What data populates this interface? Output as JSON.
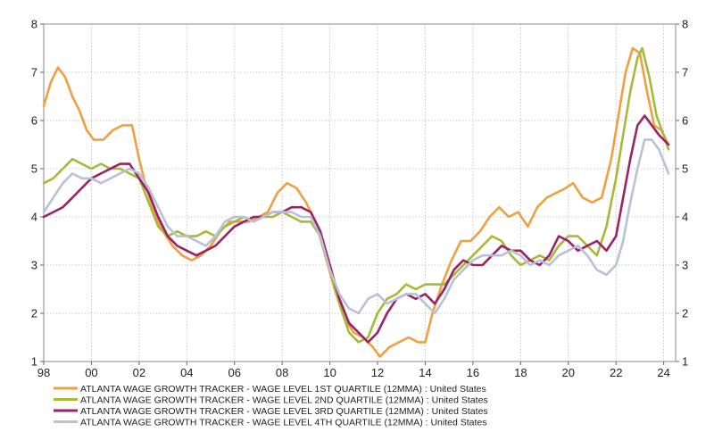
{
  "chart_data": {
    "type": "line",
    "xlim": [
      1998,
      2024.5
    ],
    "ylim": [
      1,
      8
    ],
    "x_ticks": [
      "98",
      "00",
      "02",
      "04",
      "06",
      "08",
      "10",
      "12",
      "14",
      "16",
      "18",
      "20",
      "22",
      "24"
    ],
    "x_tick_values": [
      1998,
      2000,
      2002,
      2004,
      2006,
      2008,
      2010,
      2012,
      2014,
      2016,
      2018,
      2020,
      2022,
      2024
    ],
    "y_ticks": [
      "1",
      "2",
      "3",
      "4",
      "5",
      "6",
      "7",
      "8"
    ],
    "y_tick_values": [
      1,
      2,
      3,
      4,
      5,
      6,
      7,
      8
    ],
    "grid": true,
    "legend_position": "bottom",
    "series": [
      {
        "name": "ATLANTA WAGE GROWTH TRACKER - WAGE LEVEL 1ST QUARTILE (12MMA) : United States",
        "color": "#f0a040",
        "points": [
          [
            1998.0,
            6.3
          ],
          [
            1998.3,
            6.8
          ],
          [
            1998.6,
            7.1
          ],
          [
            1998.9,
            6.9
          ],
          [
            1999.2,
            6.5
          ],
          [
            1999.5,
            6.2
          ],
          [
            1999.8,
            5.8
          ],
          [
            2000.1,
            5.6
          ],
          [
            2000.5,
            5.6
          ],
          [
            2000.9,
            5.8
          ],
          [
            2001.3,
            5.9
          ],
          [
            2001.7,
            5.9
          ],
          [
            2002.0,
            5.2
          ],
          [
            2002.3,
            4.6
          ],
          [
            2002.7,
            4.0
          ],
          [
            2003.0,
            3.7
          ],
          [
            2003.4,
            3.4
          ],
          [
            2003.8,
            3.2
          ],
          [
            2004.2,
            3.1
          ],
          [
            2004.6,
            3.2
          ],
          [
            2005.0,
            3.4
          ],
          [
            2005.4,
            3.7
          ],
          [
            2005.8,
            3.9
          ],
          [
            2006.2,
            3.9
          ],
          [
            2006.6,
            3.9
          ],
          [
            2007.0,
            4.0
          ],
          [
            2007.4,
            4.1
          ],
          [
            2007.8,
            4.5
          ],
          [
            2008.2,
            4.7
          ],
          [
            2008.6,
            4.6
          ],
          [
            2009.0,
            4.3
          ],
          [
            2009.4,
            3.9
          ],
          [
            2009.8,
            3.2
          ],
          [
            2010.2,
            2.5
          ],
          [
            2010.6,
            1.9
          ],
          [
            2011.0,
            1.6
          ],
          [
            2011.4,
            1.5
          ],
          [
            2011.8,
            1.3
          ],
          [
            2012.1,
            1.1
          ],
          [
            2012.5,
            1.3
          ],
          [
            2012.9,
            1.4
          ],
          [
            2013.3,
            1.5
          ],
          [
            2013.7,
            1.4
          ],
          [
            2014.0,
            1.4
          ],
          [
            2014.3,
            2.0
          ],
          [
            2014.7,
            2.6
          ],
          [
            2015.1,
            3.1
          ],
          [
            2015.5,
            3.5
          ],
          [
            2015.9,
            3.5
          ],
          [
            2016.3,
            3.7
          ],
          [
            2016.7,
            4.0
          ],
          [
            2017.1,
            4.2
          ],
          [
            2017.5,
            4.0
          ],
          [
            2017.9,
            4.1
          ],
          [
            2018.3,
            3.8
          ],
          [
            2018.7,
            4.2
          ],
          [
            2019.1,
            4.4
          ],
          [
            2019.5,
            4.5
          ],
          [
            2019.9,
            4.6
          ],
          [
            2020.2,
            4.7
          ],
          [
            2020.6,
            4.4
          ],
          [
            2021.0,
            4.3
          ],
          [
            2021.4,
            4.4
          ],
          [
            2021.8,
            5.2
          ],
          [
            2022.1,
            6.1
          ],
          [
            2022.4,
            7.0
          ],
          [
            2022.7,
            7.5
          ],
          [
            2023.0,
            7.4
          ],
          [
            2023.3,
            6.6
          ],
          [
            2023.6,
            5.9
          ],
          [
            2023.9,
            5.8
          ],
          [
            2024.2,
            5.5
          ]
        ]
      },
      {
        "name": "ATLANTA WAGE GROWTH TRACKER - WAGE LEVEL 2ND QUARTILE (12MMA) : United States",
        "color": "#a8b83a",
        "points": [
          [
            1998.0,
            4.7
          ],
          [
            1998.4,
            4.8
          ],
          [
            1998.8,
            5.0
          ],
          [
            1999.2,
            5.2
          ],
          [
            1999.6,
            5.1
          ],
          [
            2000.0,
            5.0
          ],
          [
            2000.4,
            5.1
          ],
          [
            2000.8,
            5.0
          ],
          [
            2001.2,
            5.0
          ],
          [
            2001.6,
            4.9
          ],
          [
            2002.0,
            4.8
          ],
          [
            2002.4,
            4.3
          ],
          [
            2002.8,
            3.8
          ],
          [
            2003.2,
            3.6
          ],
          [
            2003.6,
            3.7
          ],
          [
            2004.0,
            3.6
          ],
          [
            2004.4,
            3.6
          ],
          [
            2004.8,
            3.7
          ],
          [
            2005.2,
            3.6
          ],
          [
            2005.6,
            3.8
          ],
          [
            2006.0,
            3.9
          ],
          [
            2006.4,
            4.0
          ],
          [
            2006.8,
            3.9
          ],
          [
            2007.2,
            4.0
          ],
          [
            2007.6,
            4.0
          ],
          [
            2008.0,
            4.1
          ],
          [
            2008.4,
            4.0
          ],
          [
            2008.8,
            3.9
          ],
          [
            2009.2,
            3.9
          ],
          [
            2009.6,
            3.6
          ],
          [
            2010.0,
            2.9
          ],
          [
            2010.4,
            2.2
          ],
          [
            2010.8,
            1.6
          ],
          [
            2011.2,
            1.4
          ],
          [
            2011.6,
            1.5
          ],
          [
            2012.0,
            2.0
          ],
          [
            2012.4,
            2.3
          ],
          [
            2012.8,
            2.4
          ],
          [
            2013.2,
            2.6
          ],
          [
            2013.6,
            2.5
          ],
          [
            2014.0,
            2.6
          ],
          [
            2014.4,
            2.6
          ],
          [
            2014.8,
            2.6
          ],
          [
            2015.2,
            2.8
          ],
          [
            2015.6,
            3.0
          ],
          [
            2016.0,
            3.2
          ],
          [
            2016.4,
            3.4
          ],
          [
            2016.8,
            3.6
          ],
          [
            2017.2,
            3.5
          ],
          [
            2017.6,
            3.2
          ],
          [
            2018.0,
            3.0
          ],
          [
            2018.4,
            3.1
          ],
          [
            2018.8,
            3.2
          ],
          [
            2019.2,
            3.1
          ],
          [
            2019.6,
            3.4
          ],
          [
            2020.0,
            3.6
          ],
          [
            2020.4,
            3.6
          ],
          [
            2020.8,
            3.4
          ],
          [
            2021.2,
            3.2
          ],
          [
            2021.6,
            3.8
          ],
          [
            2022.0,
            4.8
          ],
          [
            2022.3,
            5.7
          ],
          [
            2022.6,
            6.6
          ],
          [
            2022.9,
            7.3
          ],
          [
            2023.1,
            7.5
          ],
          [
            2023.4,
            6.9
          ],
          [
            2023.7,
            6.1
          ],
          [
            2024.0,
            5.7
          ],
          [
            2024.2,
            5.4
          ]
        ]
      },
      {
        "name": "ATLANTA WAGE GROWTH TRACKER - WAGE LEVEL 3RD QUARTILE (12MMA) : United States",
        "color": "#9b2266",
        "points": [
          [
            1998.0,
            4.0
          ],
          [
            1998.4,
            4.1
          ],
          [
            1998.8,
            4.2
          ],
          [
            1999.2,
            4.4
          ],
          [
            1999.6,
            4.6
          ],
          [
            2000.0,
            4.8
          ],
          [
            2000.4,
            4.9
          ],
          [
            2000.8,
            5.0
          ],
          [
            2001.2,
            5.1
          ],
          [
            2001.6,
            5.1
          ],
          [
            2002.0,
            4.8
          ],
          [
            2002.4,
            4.5
          ],
          [
            2002.8,
            4.0
          ],
          [
            2003.2,
            3.6
          ],
          [
            2003.6,
            3.4
          ],
          [
            2004.0,
            3.3
          ],
          [
            2004.4,
            3.2
          ],
          [
            2004.8,
            3.3
          ],
          [
            2005.2,
            3.4
          ],
          [
            2005.6,
            3.6
          ],
          [
            2006.0,
            3.8
          ],
          [
            2006.4,
            3.9
          ],
          [
            2006.8,
            4.0
          ],
          [
            2007.2,
            4.0
          ],
          [
            2007.6,
            4.1
          ],
          [
            2008.0,
            4.1
          ],
          [
            2008.4,
            4.2
          ],
          [
            2008.8,
            4.2
          ],
          [
            2009.2,
            4.1
          ],
          [
            2009.6,
            3.7
          ],
          [
            2010.0,
            3.0
          ],
          [
            2010.4,
            2.3
          ],
          [
            2010.8,
            1.8
          ],
          [
            2011.2,
            1.6
          ],
          [
            2011.6,
            1.4
          ],
          [
            2012.0,
            1.6
          ],
          [
            2012.4,
            2.0
          ],
          [
            2012.8,
            2.3
          ],
          [
            2013.2,
            2.4
          ],
          [
            2013.6,
            2.3
          ],
          [
            2014.0,
            2.4
          ],
          [
            2014.4,
            2.2
          ],
          [
            2014.8,
            2.5
          ],
          [
            2015.2,
            2.9
          ],
          [
            2015.6,
            3.1
          ],
          [
            2016.0,
            3.0
          ],
          [
            2016.4,
            3.0
          ],
          [
            2016.8,
            3.2
          ],
          [
            2017.2,
            3.4
          ],
          [
            2017.6,
            3.3
          ],
          [
            2018.0,
            3.3
          ],
          [
            2018.4,
            3.1
          ],
          [
            2018.8,
            3.0
          ],
          [
            2019.2,
            3.2
          ],
          [
            2019.6,
            3.6
          ],
          [
            2020.0,
            3.5
          ],
          [
            2020.4,
            3.3
          ],
          [
            2020.8,
            3.4
          ],
          [
            2021.2,
            3.5
          ],
          [
            2021.6,
            3.3
          ],
          [
            2022.0,
            3.6
          ],
          [
            2022.3,
            4.4
          ],
          [
            2022.6,
            5.2
          ],
          [
            2022.9,
            5.9
          ],
          [
            2023.2,
            6.1
          ],
          [
            2023.5,
            5.9
          ],
          [
            2023.8,
            5.7
          ],
          [
            2024.2,
            5.5
          ]
        ]
      },
      {
        "name": "ATLANTA WAGE GROWTH TRACKER - WAGE LEVEL 4TH QUARTILE (12MMA) : United States",
        "color": "#b8c2d4",
        "points": [
          [
            1998.0,
            4.1
          ],
          [
            1998.4,
            4.4
          ],
          [
            1998.8,
            4.7
          ],
          [
            1999.2,
            4.9
          ],
          [
            1999.6,
            4.8
          ],
          [
            2000.0,
            4.8
          ],
          [
            2000.4,
            4.7
          ],
          [
            2000.8,
            4.8
          ],
          [
            2001.2,
            4.9
          ],
          [
            2001.6,
            5.0
          ],
          [
            2002.0,
            4.9
          ],
          [
            2002.4,
            4.6
          ],
          [
            2002.8,
            4.2
          ],
          [
            2003.2,
            3.8
          ],
          [
            2003.6,
            3.6
          ],
          [
            2004.0,
            3.6
          ],
          [
            2004.4,
            3.5
          ],
          [
            2004.8,
            3.4
          ],
          [
            2005.2,
            3.6
          ],
          [
            2005.6,
            3.9
          ],
          [
            2006.0,
            4.0
          ],
          [
            2006.4,
            4.0
          ],
          [
            2006.8,
            3.9
          ],
          [
            2007.2,
            4.0
          ],
          [
            2007.6,
            4.1
          ],
          [
            2008.0,
            4.1
          ],
          [
            2008.4,
            4.1
          ],
          [
            2008.8,
            4.0
          ],
          [
            2009.2,
            4.0
          ],
          [
            2009.6,
            3.6
          ],
          [
            2010.0,
            2.9
          ],
          [
            2010.4,
            2.4
          ],
          [
            2010.8,
            2.1
          ],
          [
            2011.2,
            2.0
          ],
          [
            2011.6,
            2.3
          ],
          [
            2012.0,
            2.4
          ],
          [
            2012.4,
            2.2
          ],
          [
            2012.8,
            2.3
          ],
          [
            2013.2,
            2.4
          ],
          [
            2013.6,
            2.4
          ],
          [
            2014.0,
            2.2
          ],
          [
            2014.4,
            2.0
          ],
          [
            2014.8,
            2.3
          ],
          [
            2015.2,
            2.7
          ],
          [
            2015.6,
            2.9
          ],
          [
            2016.0,
            3.1
          ],
          [
            2016.4,
            3.2
          ],
          [
            2016.8,
            3.2
          ],
          [
            2017.2,
            3.2
          ],
          [
            2017.6,
            3.3
          ],
          [
            2018.0,
            3.2
          ],
          [
            2018.4,
            3.0
          ],
          [
            2018.8,
            3.1
          ],
          [
            2019.2,
            3.0
          ],
          [
            2019.6,
            3.2
          ],
          [
            2020.0,
            3.3
          ],
          [
            2020.4,
            3.4
          ],
          [
            2020.8,
            3.2
          ],
          [
            2021.2,
            2.9
          ],
          [
            2021.6,
            2.8
          ],
          [
            2022.0,
            3.0
          ],
          [
            2022.3,
            3.5
          ],
          [
            2022.6,
            4.3
          ],
          [
            2022.9,
            5.0
          ],
          [
            2023.2,
            5.6
          ],
          [
            2023.5,
            5.6
          ],
          [
            2023.8,
            5.4
          ],
          [
            2024.2,
            4.9
          ]
        ]
      }
    ]
  }
}
